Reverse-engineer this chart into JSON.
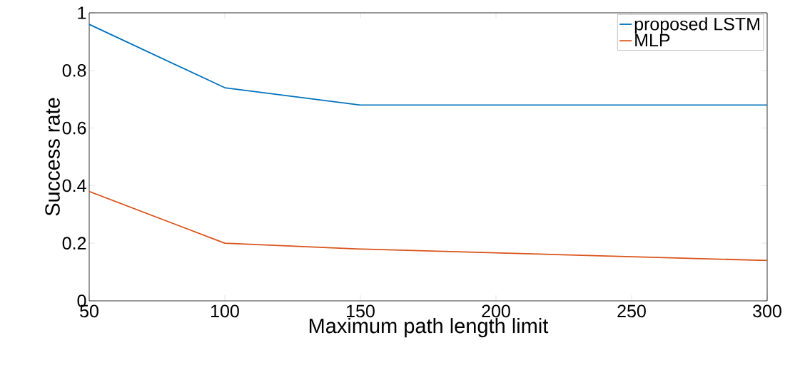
{
  "chart_data": {
    "type": "line",
    "xlabel": "Maximum path length limit",
    "ylabel": "Success rate",
    "xlim": [
      50,
      300
    ],
    "ylim": [
      0,
      1
    ],
    "xticks": [
      50,
      100,
      150,
      200,
      250,
      300
    ],
    "yticks": [
      0,
      0.2,
      0.4,
      0.6,
      0.8,
      1
    ],
    "grid": false,
    "legend": "top right",
    "marker": "none",
    "line_style": "solid",
    "series": [
      {
        "name": "proposed LSTM",
        "color": "#0072bd",
        "x": [
          50,
          100,
          150,
          300
        ],
        "values": [
          0.96,
          0.74,
          0.68,
          0.68
        ]
      },
      {
        "name": "MLP",
        "color": "#d95319",
        "x": [
          50,
          100,
          150,
          300
        ],
        "values": [
          0.38,
          0.2,
          0.18,
          0.14
        ]
      }
    ]
  }
}
